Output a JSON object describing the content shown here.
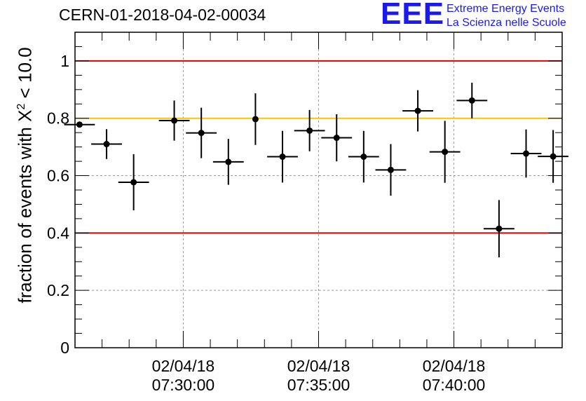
{
  "title": "CERN-01-2018-04-02-00034",
  "logo": {
    "mark": "EEE",
    "line1": "Extreme Energy Events",
    "line2": "La Scienza nelle Scuole",
    "color": "#1a1af0"
  },
  "chart_data": {
    "type": "scatter",
    "title": "CERN-01-2018-04-02-00034",
    "ylabel_prefix": "fraction of events with X",
    "ylabel_sup": "2",
    "ylabel_suffix": " < 10.0",
    "ylim": [
      0,
      1.1
    ],
    "yticks": [
      0,
      0.2,
      0.4,
      0.6,
      0.8,
      1
    ],
    "ytick_labels": [
      "0",
      "0.2",
      "0.4",
      "0.6",
      "0.8",
      "1"
    ],
    "xlim": [
      "07:26:00",
      "07:44:00"
    ],
    "xticks": [
      "07:30:00",
      "07:35:00",
      "07:40:00"
    ],
    "xtick_labels": [
      {
        "date": "02/04/18",
        "time": "07:30:00"
      },
      {
        "date": "02/04/18",
        "time": "07:35:00"
      },
      {
        "date": "02/04/18",
        "time": "07:40:00"
      }
    ],
    "grid": true,
    "reference_lines": [
      {
        "y": 1.0,
        "color": "#e00000"
      },
      {
        "y": 0.8,
        "color": "#ffc000"
      },
      {
        "y": 0.4,
        "color": "#e00000"
      }
    ],
    "series": [
      {
        "points": [
          {
            "x": "07:26:10",
            "xerr_min": 0.33,
            "y": 0.778,
            "yerr": 0.008
          },
          {
            "x": "07:27:10",
            "xerr_min": 0.33,
            "y": 0.71,
            "yerr": 0.052
          },
          {
            "x": "07:28:10",
            "xerr_min": 0.33,
            "y": 0.577,
            "yerr": 0.098
          },
          {
            "x": "07:29:40",
            "xerr_min": 0.33,
            "y": 0.792,
            "yerr": 0.07
          },
          {
            "x": "07:30:40",
            "xerr_min": 0.33,
            "y": 0.749,
            "yerr": 0.088
          },
          {
            "x": "07:31:40",
            "xerr_min": 0.33,
            "y": 0.648,
            "yerr": 0.08
          },
          {
            "x": "07:32:40",
            "xerr_min": 0.04,
            "y": 0.797,
            "yerr": 0.09
          },
          {
            "x": "07:33:40",
            "xerr_min": 0.33,
            "y": 0.666,
            "yerr": 0.09
          },
          {
            "x": "07:34:40",
            "xerr_min": 0.33,
            "y": 0.757,
            "yerr": 0.072
          },
          {
            "x": "07:35:40",
            "xerr_min": 0.33,
            "y": 0.732,
            "yerr": 0.082
          },
          {
            "x": "07:36:40",
            "xerr_min": 0.33,
            "y": 0.666,
            "yerr": 0.09
          },
          {
            "x": "07:37:40",
            "xerr_min": 0.33,
            "y": 0.62,
            "yerr": 0.09
          },
          {
            "x": "07:38:40",
            "xerr_min": 0.33,
            "y": 0.826,
            "yerr": 0.072
          },
          {
            "x": "07:39:40",
            "xerr_min": 0.33,
            "y": 0.683,
            "yerr": 0.108
          },
          {
            "x": "07:40:40",
            "xerr_min": 0.33,
            "y": 0.862,
            "yerr": 0.062
          },
          {
            "x": "07:41:40",
            "xerr_min": 0.33,
            "y": 0.415,
            "yerr": 0.1
          },
          {
            "x": "07:42:40",
            "xerr_min": 0.33,
            "y": 0.677,
            "yerr": 0.084
          },
          {
            "x": "07:43:40",
            "xerr_min": 0.33,
            "y": 0.667,
            "yerr": 0.092
          }
        ],
        "color": "#000000"
      }
    ]
  }
}
